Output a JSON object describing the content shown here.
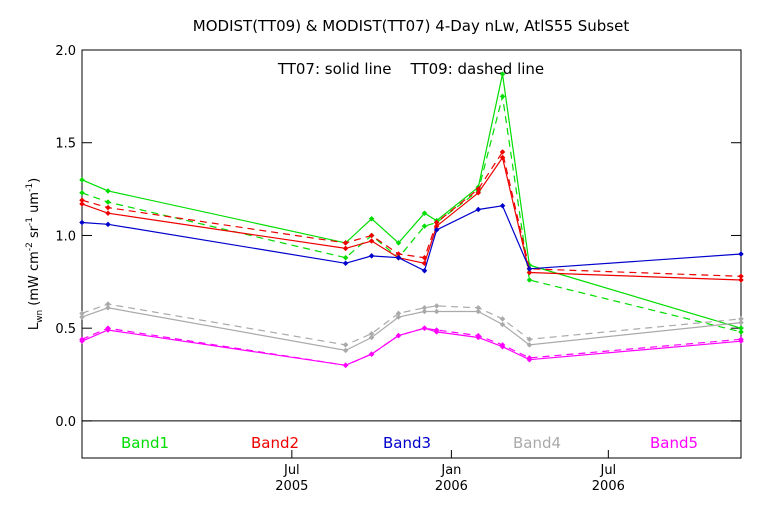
{
  "chart_data": {
    "type": "line",
    "title": "MODIST(TT09) & MODIST(TT07) 4-Day nLw, AtlS55 Subset",
    "annotation": "TT07: solid line    TT09: dashed line",
    "ylabel": "L",
    "ylabel_sub": "wn",
    "ylabel_units": " (mW cm",
    "ylabel_exp1": "-2",
    "ylabel_mid": " sr",
    "ylabel_exp2": "-1",
    "ylabel_end": " um",
    "ylabel_exp3": "-1",
    "ylabel_close": ")",
    "ylim": [
      -0.2,
      2.0
    ],
    "yticks": [
      "0.0",
      "0.5",
      "1.0",
      "1.5",
      "2.0"
    ],
    "ytick_values": [
      0.0,
      0.5,
      1.0,
      1.5,
      2.0
    ],
    "xlim": [
      "2004-11-01",
      "2006-12-01"
    ],
    "xticks": [
      {
        "date": "2005-07-01",
        "label": "Jul",
        "year": "2005"
      },
      {
        "date": "2006-01-01",
        "label": "Jan",
        "year": "2006"
      },
      {
        "date": "2006-07-01",
        "label": "Jul",
        "year": "2006"
      }
    ],
    "legend_placement": "bottom",
    "series": [
      {
        "name": "Band1",
        "color": "#00dd00",
        "style": "solid",
        "x": [
          "2004-11-01",
          "2004-12-01",
          "2005-09-01",
          "2005-10-01",
          "2005-11-01",
          "2005-12-01",
          "2005-12-15",
          "2006-02-01",
          "2006-03-01",
          "2006-04-01",
          "2006-12-01"
        ],
        "y": [
          1.3,
          1.24,
          0.96,
          1.09,
          0.96,
          1.12,
          1.08,
          1.26,
          1.87,
          0.84,
          0.5
        ]
      },
      {
        "name": "Band1",
        "color": "#00dd00",
        "style": "dashed",
        "x": [
          "2004-11-01",
          "2004-12-01",
          "2005-09-01",
          "2005-10-01",
          "2005-11-01",
          "2005-12-01",
          "2005-12-15",
          "2006-02-01",
          "2006-03-01",
          "2006-04-01",
          "2006-12-01"
        ],
        "y": [
          1.23,
          1.18,
          0.88,
          1.0,
          0.88,
          1.05,
          1.07,
          1.24,
          1.75,
          0.76,
          0.48
        ]
      },
      {
        "name": "Band2",
        "color": "#ee0000",
        "style": "solid",
        "x": [
          "2004-11-01",
          "2004-12-01",
          "2005-09-01",
          "2005-10-01",
          "2005-11-01",
          "2005-12-01",
          "2005-12-15",
          "2006-02-01",
          "2006-03-01",
          "2006-04-01",
          "2006-12-01"
        ],
        "y": [
          1.17,
          1.12,
          0.93,
          0.97,
          0.88,
          0.85,
          1.05,
          1.23,
          1.42,
          0.8,
          0.76
        ]
      },
      {
        "name": "Band2",
        "color": "#ee0000",
        "style": "dashed",
        "x": [
          "2004-11-01",
          "2004-12-01",
          "2005-09-01",
          "2005-10-01",
          "2005-11-01",
          "2005-12-01",
          "2005-12-15",
          "2006-02-01",
          "2006-03-01",
          "2006-04-01",
          "2006-12-01"
        ],
        "y": [
          1.19,
          1.15,
          0.96,
          1.0,
          0.9,
          0.88,
          1.07,
          1.25,
          1.45,
          0.82,
          0.78
        ]
      },
      {
        "name": "Band3",
        "color": "#0000cc",
        "style": "solid",
        "x": [
          "2004-11-01",
          "2004-12-01",
          "2005-09-01",
          "2005-10-01",
          "2005-11-01",
          "2005-12-01",
          "2005-12-15",
          "2006-02-01",
          "2006-03-01",
          "2006-04-01",
          "2006-12-01"
        ],
        "y": [
          1.07,
          1.06,
          0.85,
          0.89,
          0.88,
          0.81,
          1.03,
          1.14,
          1.16,
          0.82,
          0.9
        ]
      },
      {
        "name": "Band4",
        "color": "#aaaaaa",
        "style": "solid",
        "x": [
          "2004-11-01",
          "2004-12-01",
          "2005-09-01",
          "2005-10-01",
          "2005-11-01",
          "2005-12-01",
          "2005-12-15",
          "2006-02-01",
          "2006-03-01",
          "2006-04-01",
          "2006-12-01"
        ],
        "y": [
          0.56,
          0.61,
          0.38,
          0.45,
          0.56,
          0.59,
          0.59,
          0.59,
          0.52,
          0.41,
          0.53
        ]
      },
      {
        "name": "Band4",
        "color": "#aaaaaa",
        "style": "dashed",
        "x": [
          "2004-11-01",
          "2004-12-01",
          "2005-09-01",
          "2005-10-01",
          "2005-11-01",
          "2005-12-01",
          "2005-12-15",
          "2006-02-01",
          "2006-03-01",
          "2006-04-01",
          "2006-12-01"
        ],
        "y": [
          0.58,
          0.63,
          0.41,
          0.47,
          0.58,
          0.61,
          0.62,
          0.61,
          0.55,
          0.44,
          0.55
        ]
      },
      {
        "name": "Band5",
        "color": "#ff00ff",
        "style": "solid",
        "x": [
          "2004-11-01",
          "2004-12-01",
          "2005-09-01",
          "2005-10-01",
          "2005-11-01",
          "2005-12-01",
          "2005-12-15",
          "2006-02-01",
          "2006-03-01",
          "2006-04-01",
          "2006-12-01"
        ],
        "y": [
          0.43,
          0.49,
          0.3,
          0.36,
          0.46,
          0.5,
          0.48,
          0.45,
          0.4,
          0.33,
          0.43
        ]
      },
      {
        "name": "Band5",
        "color": "#ff00ff",
        "style": "dashed",
        "x": [
          "2004-11-01",
          "2004-12-01",
          "2005-09-01",
          "2005-10-01",
          "2005-11-01",
          "2005-12-01",
          "2005-12-15",
          "2006-02-01",
          "2006-03-01",
          "2006-04-01",
          "2006-12-01"
        ],
        "y": [
          0.44,
          0.5,
          0.3,
          0.36,
          0.46,
          0.5,
          0.49,
          0.46,
          0.41,
          0.34,
          0.44
        ]
      }
    ],
    "legend": [
      {
        "label": "Band1",
        "color": "#00dd00"
      },
      {
        "label": "Band2",
        "color": "#ee0000"
      },
      {
        "label": "Band3",
        "color": "#0000cc"
      },
      {
        "label": "Band4",
        "color": "#aaaaaa"
      },
      {
        "label": "Band5",
        "color": "#ff00ff"
      }
    ]
  }
}
